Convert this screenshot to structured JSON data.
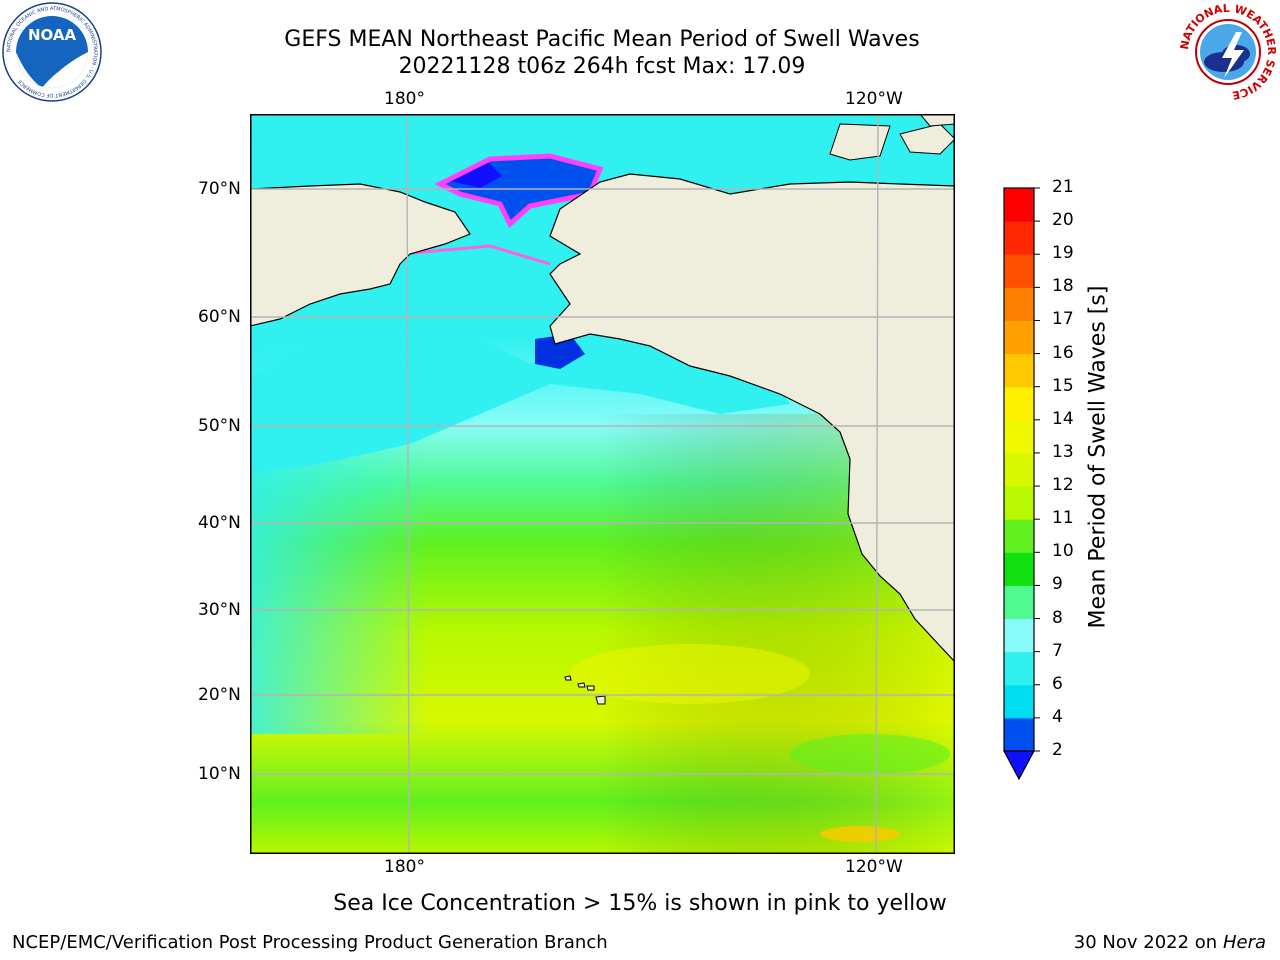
{
  "title": {
    "line1": "GEFS MEAN Northeast Pacific Mean Period of Swell Waves",
    "line2": "20221128 t06z 264h fcst   Max: 17.09"
  },
  "logos": {
    "left": {
      "name": "noaa-logo",
      "text": "NOAA",
      "ring_text": "NATIONAL OCEANIC AND ATMOSPHERIC ADMINISTRATION · U.S. DEPARTMENT OF COMMERCE"
    },
    "right": {
      "name": "nws-logo",
      "ring_text": "NATIONAL WEATHER SERVICE"
    }
  },
  "map": {
    "lon_labels": [
      "180°",
      "120°W"
    ],
    "lat_labels": [
      "70°N",
      "60°N",
      "50°N",
      "40°N",
      "30°N",
      "20°N",
      "10°N"
    ],
    "colors": {
      "land": "#efeedd",
      "grid": "#b4b4b4"
    }
  },
  "colorbar": {
    "label": "Mean Period of Swell Waves [s]",
    "ticks": [
      "2",
      "4",
      "6",
      "7",
      "8",
      "9",
      "10",
      "11",
      "12",
      "13",
      "14",
      "15",
      "16",
      "17",
      "18",
      "19",
      "20",
      "21"
    ],
    "colors": [
      "#0050f0",
      "#00dcf0",
      "#30f0f0",
      "#88fcf8",
      "#50fa90",
      "#10e010",
      "#60f020",
      "#b8f800",
      "#d8f800",
      "#f0f800",
      "#fff000",
      "#ffc800",
      "#ffa000",
      "#ff8000",
      "#ff5000",
      "#ff2800",
      "#ff0000"
    ],
    "under_color": "#1010ff"
  },
  "note": "Sea Ice Concentration > 15% is shown in pink to yellow",
  "footer": {
    "left": "NCEP/EMC/Verification Post Processing Product Generation Branch",
    "date": "30 Nov 2022 on",
    "machine": "Hera"
  }
}
